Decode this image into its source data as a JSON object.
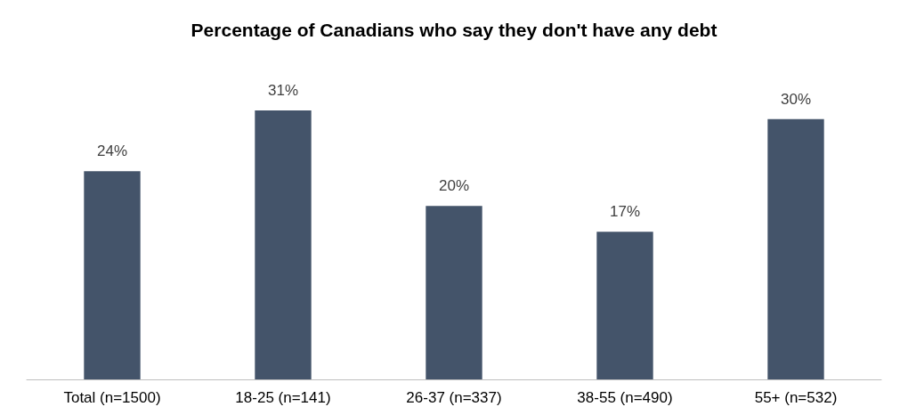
{
  "chart_data": {
    "type": "bar",
    "title": "Percentage of Canadians who say they don't have any debt",
    "categories": [
      "Total (n=1500)",
      "18-25 (n=141)",
      "26-37 (n=337)",
      "38-55 (n=490)",
      "55+ (n=532)"
    ],
    "values": [
      24,
      31,
      20,
      17,
      30
    ],
    "value_labels": [
      "24%",
      "31%",
      "20%",
      "17%",
      "30%"
    ],
    "color": "#44546a"
  }
}
